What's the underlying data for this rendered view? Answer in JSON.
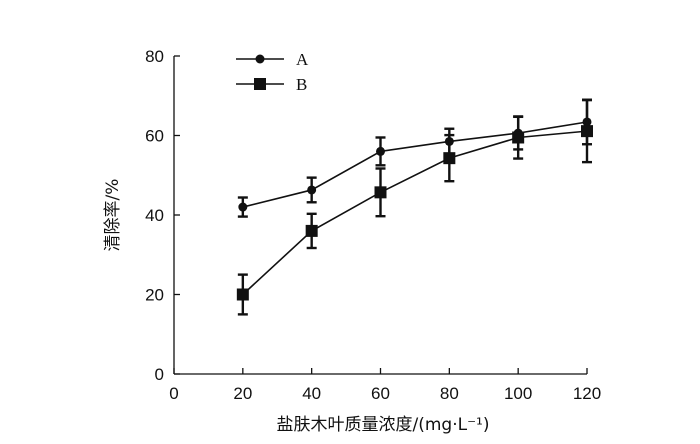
{
  "chart_data": {
    "type": "line",
    "xlabel": "盐肤木叶质量浓度/(mg·L⁻¹)",
    "ylabel": "清除率/%",
    "xlim": [
      0,
      120
    ],
    "ylim": [
      0,
      80
    ],
    "xticks": [
      "0",
      "20",
      "40",
      "60",
      "80",
      "100",
      "120"
    ],
    "yticks": [
      "0",
      "20",
      "40",
      "60",
      "80"
    ],
    "grid": false,
    "legend_position": "top-left",
    "x": [
      20,
      40,
      60,
      80,
      100,
      120
    ],
    "series": [
      {
        "name": "A",
        "marker": "circle",
        "values": [
          42.0,
          46.3,
          56.0,
          58.5,
          60.6,
          63.4
        ],
        "errors": [
          2.4,
          3.1,
          3.5,
          3.2,
          4.1,
          5.6
        ]
      },
      {
        "name": "B",
        "marker": "square",
        "values": [
          20.0,
          36.0,
          45.7,
          54.3,
          59.5,
          61.1
        ],
        "errors": [
          5.0,
          4.3,
          6.0,
          5.8,
          5.3,
          7.8
        ]
      }
    ]
  }
}
